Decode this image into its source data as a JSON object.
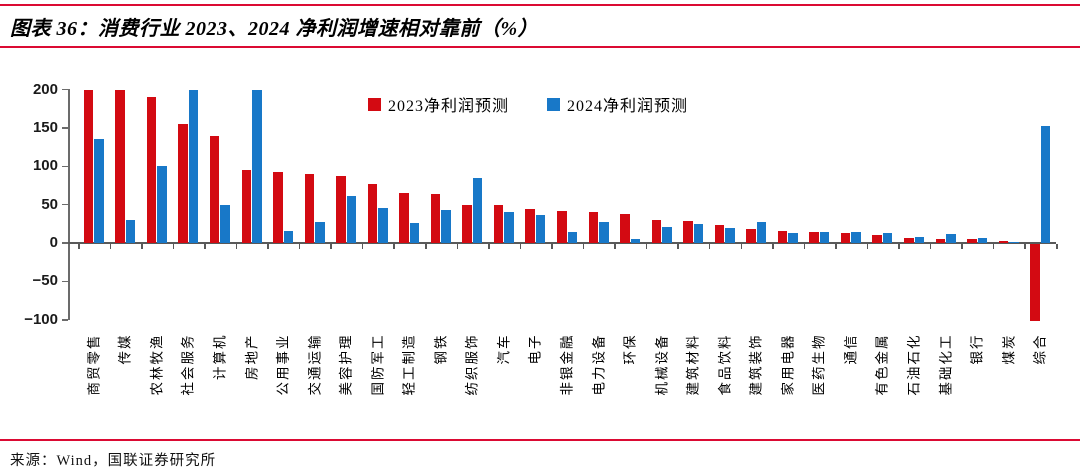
{
  "figure": {
    "title": "图表 36：消费行业 2023、2024 净利润增速相对靠前（%）",
    "source": "来源：Wind，国联证券研究所"
  },
  "colors": {
    "series_2023": "#D30A12",
    "series_2024": "#1878C8",
    "rule": "#DB0A33",
    "axis": "#6b6b6b"
  },
  "legend": [
    {
      "label": "2023净利润预测",
      "color": "#D30A12"
    },
    {
      "label": "2024净利润预测",
      "color": "#1878C8"
    }
  ],
  "chart_data": {
    "type": "bar",
    "title": "消费行业2023、2024净利润增速相对靠前（%）",
    "categories": [
      "商贸零售",
      "传媒",
      "农林牧渔",
      "社会服务",
      "计算机",
      "房地产",
      "公用事业",
      "交通运输",
      "美容护理",
      "国防军工",
      "轻工制造",
      "钢铁",
      "纺织服饰",
      "汽车",
      "电子",
      "非银金融",
      "电力设备",
      "环保",
      "机械设备",
      "建筑材料",
      "食品饮料",
      "建筑装饰",
      "家用电器",
      "医药生物",
      "通信",
      "有色金属",
      "石油石化",
      "基础化工",
      "银行",
      "煤炭",
      "综合"
    ],
    "series": [
      {
        "name": "2023净利润预测",
        "color": "#D30A12",
        "values": [
          200,
          200,
          190,
          155,
          139,
          95,
          93,
          90,
          87,
          77,
          65,
          64,
          50,
          49,
          44,
          42,
          40,
          38,
          30,
          29,
          23,
          18,
          16,
          14,
          13,
          11,
          7,
          5,
          5,
          2,
          -100
        ]
      },
      {
        "name": "2024净利润预测",
        "color": "#1878C8",
        "values": [
          136,
          30,
          100,
          200,
          50,
          200,
          15,
          27,
          61,
          45,
          26,
          43,
          85,
          40,
          37,
          14,
          27,
          5,
          21,
          25,
          19,
          27,
          13,
          14,
          14,
          13,
          8,
          12,
          6,
          1,
          153
        ]
      }
    ],
    "ylim": [
      -100,
      200
    ],
    "yticks": [
      200,
      150,
      100,
      50,
      0,
      -50,
      -100
    ],
    "xlabel": "",
    "ylabel": "",
    "grid": false,
    "legend_position": "top-center",
    "note": "values clipped to axis range in plot"
  }
}
